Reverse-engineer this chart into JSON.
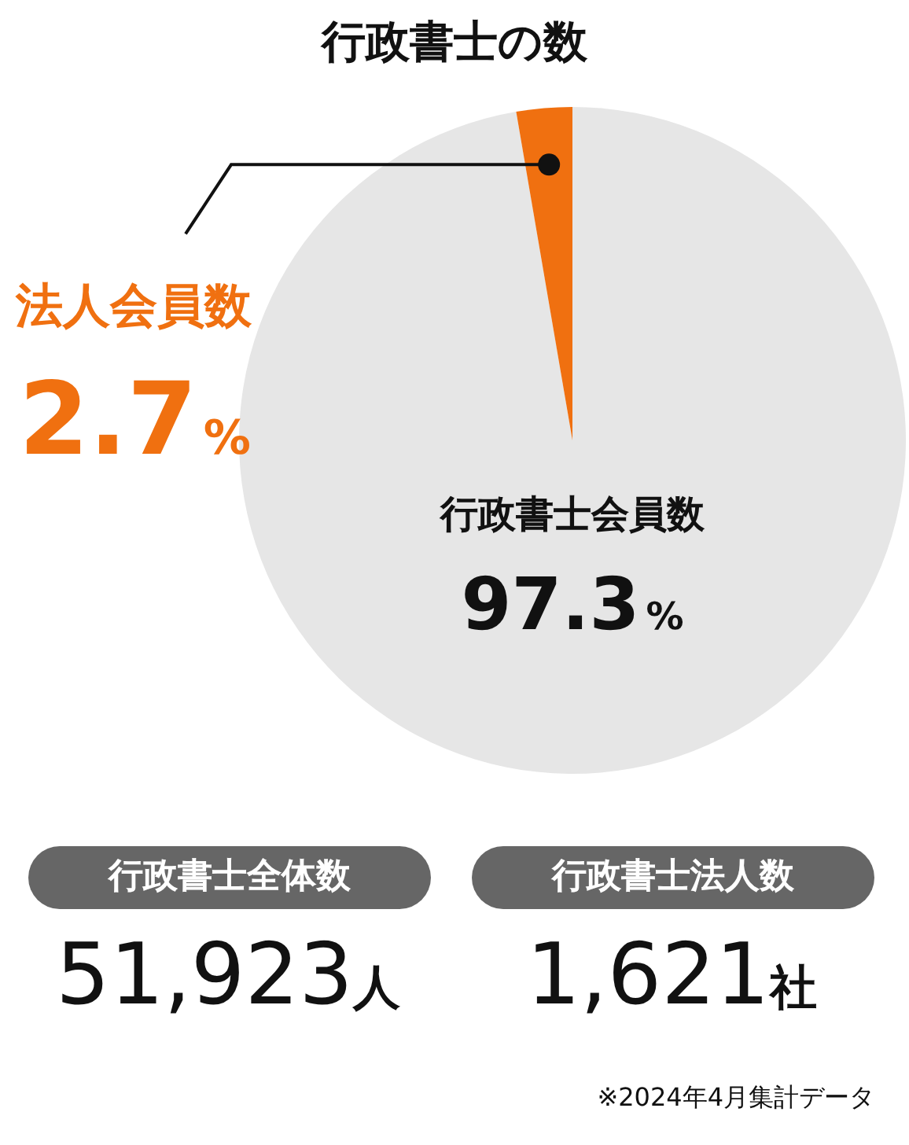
{
  "chart_data": {
    "type": "pie",
    "title": "行政書士の数",
    "categories": [
      "行政書士会員数",
      "法人会員数"
    ],
    "values": [
      97.3,
      2.7
    ],
    "colors": [
      "#e6e6e6",
      "#f07010"
    ],
    "value_labels": [
      "97.3%",
      "2.7%"
    ],
    "legend": false,
    "annotations": [
      "行政書士全体数",
      "行政書士法人数",
      "51,923人",
      "1,621社",
      "※2024年4月集計データ"
    ]
  }
}
